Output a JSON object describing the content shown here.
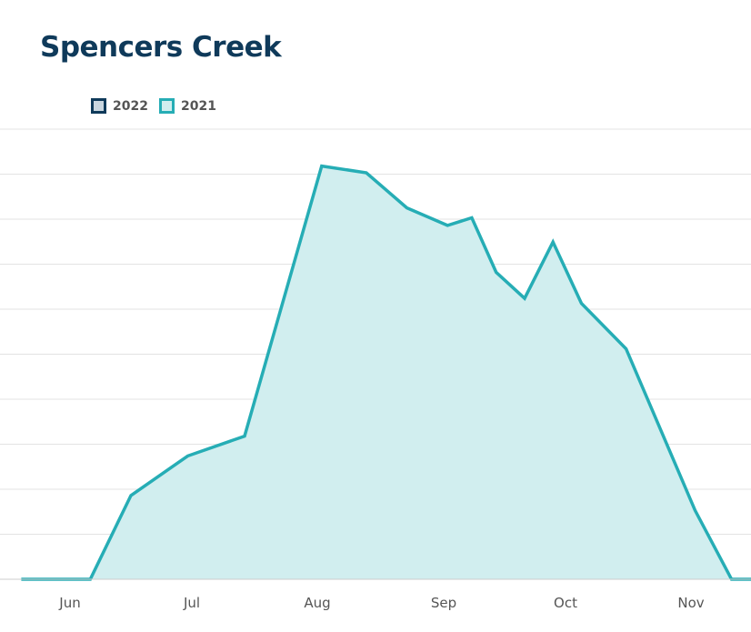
{
  "page": {
    "title": "Spencers Creek"
  },
  "legend": [
    {
      "label": "2022",
      "border_color": "#0f3a5a",
      "fill_color": "#c9d6df"
    },
    {
      "label": "2021",
      "border_color": "#26adb5",
      "fill_color": "#d1eeef"
    }
  ],
  "colors": {
    "line_2021": "#26adb5",
    "fill_2021": "#d1eeef",
    "grid": "#e3e3e3",
    "baseline": "#cccccc",
    "tick_label": "#555555"
  },
  "chart_data": {
    "type": "area",
    "title": "Spencers Creek",
    "xlabel": "",
    "ylabel": "",
    "x_ticks": [
      "Jun",
      "Jul",
      "Aug",
      "Sep",
      "Oct",
      "Nov"
    ],
    "grid": true,
    "legend_position": "top-left",
    "y_gridline_count": 10,
    "ylim": [
      0,
      10
    ],
    "series": [
      {
        "name": "2022",
        "x": [],
        "y": []
      },
      {
        "name": "2021",
        "x": [
          "2021-05-20",
          "2021-06-01",
          "2021-06-06",
          "2021-06-16",
          "2021-06-30",
          "2021-07-14",
          "2021-08-02",
          "2021-08-13",
          "2021-08-23",
          "2021-09-02",
          "2021-09-08",
          "2021-09-14",
          "2021-09-21",
          "2021-09-28",
          "2021-10-05",
          "2021-10-16",
          "2021-11-02",
          "2021-11-11",
          "2021-11-20"
        ],
        "y": [
          0,
          0,
          0,
          1.86,
          2.74,
          3.18,
          9.18,
          9.03,
          8.25,
          7.86,
          8.03,
          6.82,
          6.24,
          7.49,
          6.13,
          5.12,
          1.53,
          0,
          0
        ]
      }
    ]
  }
}
